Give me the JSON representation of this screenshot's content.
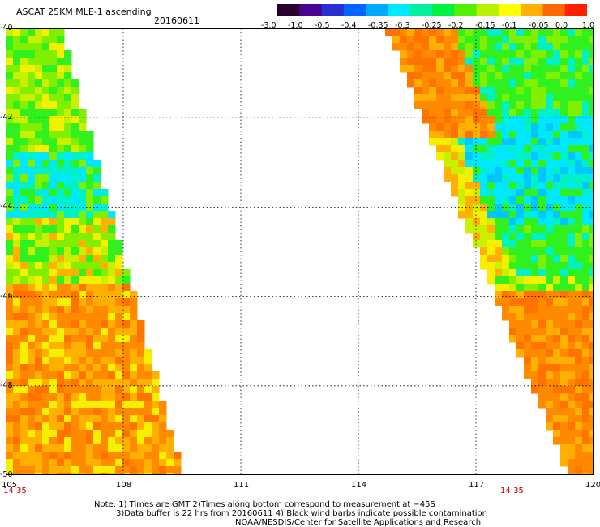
{
  "header": {
    "title": "ASCAT 25KM MLE-1 ascending",
    "date": "20160611"
  },
  "colorbar": {
    "labels": [
      "-3.0",
      "-1.0",
      "-0.5",
      "-0.4",
      "-0.35",
      "-0.3",
      "-0.25",
      "-0.2",
      "-0.15",
      "-0.1",
      "-0.05",
      "0.0",
      "1.0"
    ],
    "colors": [
      "#2a0030",
      "#4a0090",
      "#2a30d0",
      "#0066ff",
      "#00a8ff",
      "#00e8ff",
      "#00f0a0",
      "#00f040",
      "#50f000",
      "#b8f000",
      "#ffff00",
      "#ffb000",
      "#ff6800",
      "#ff2000"
    ]
  },
  "map": {
    "lat_labels": [
      "-40",
      "-42",
      "-44",
      "-46",
      "-48",
      "-50"
    ],
    "lon_labels": [
      "105",
      "108",
      "111",
      "114",
      "117",
      "120"
    ],
    "lon_range": [
      105,
      120
    ],
    "lat_range": [
      -40,
      -50
    ],
    "swath_times": [
      "14:35",
      "14:35"
    ]
  },
  "notes": {
    "line1": "Note: 1) Times are GMT 2)Times along bottom correspond to measurement at −45S",
    "line2": "3)Data buffer is 22 hrs from 20160611 4) Black wind barbs indicate possible contamination",
    "line3": "NOAA/NESDIS/Center for Satellite Applications and Research"
  }
}
